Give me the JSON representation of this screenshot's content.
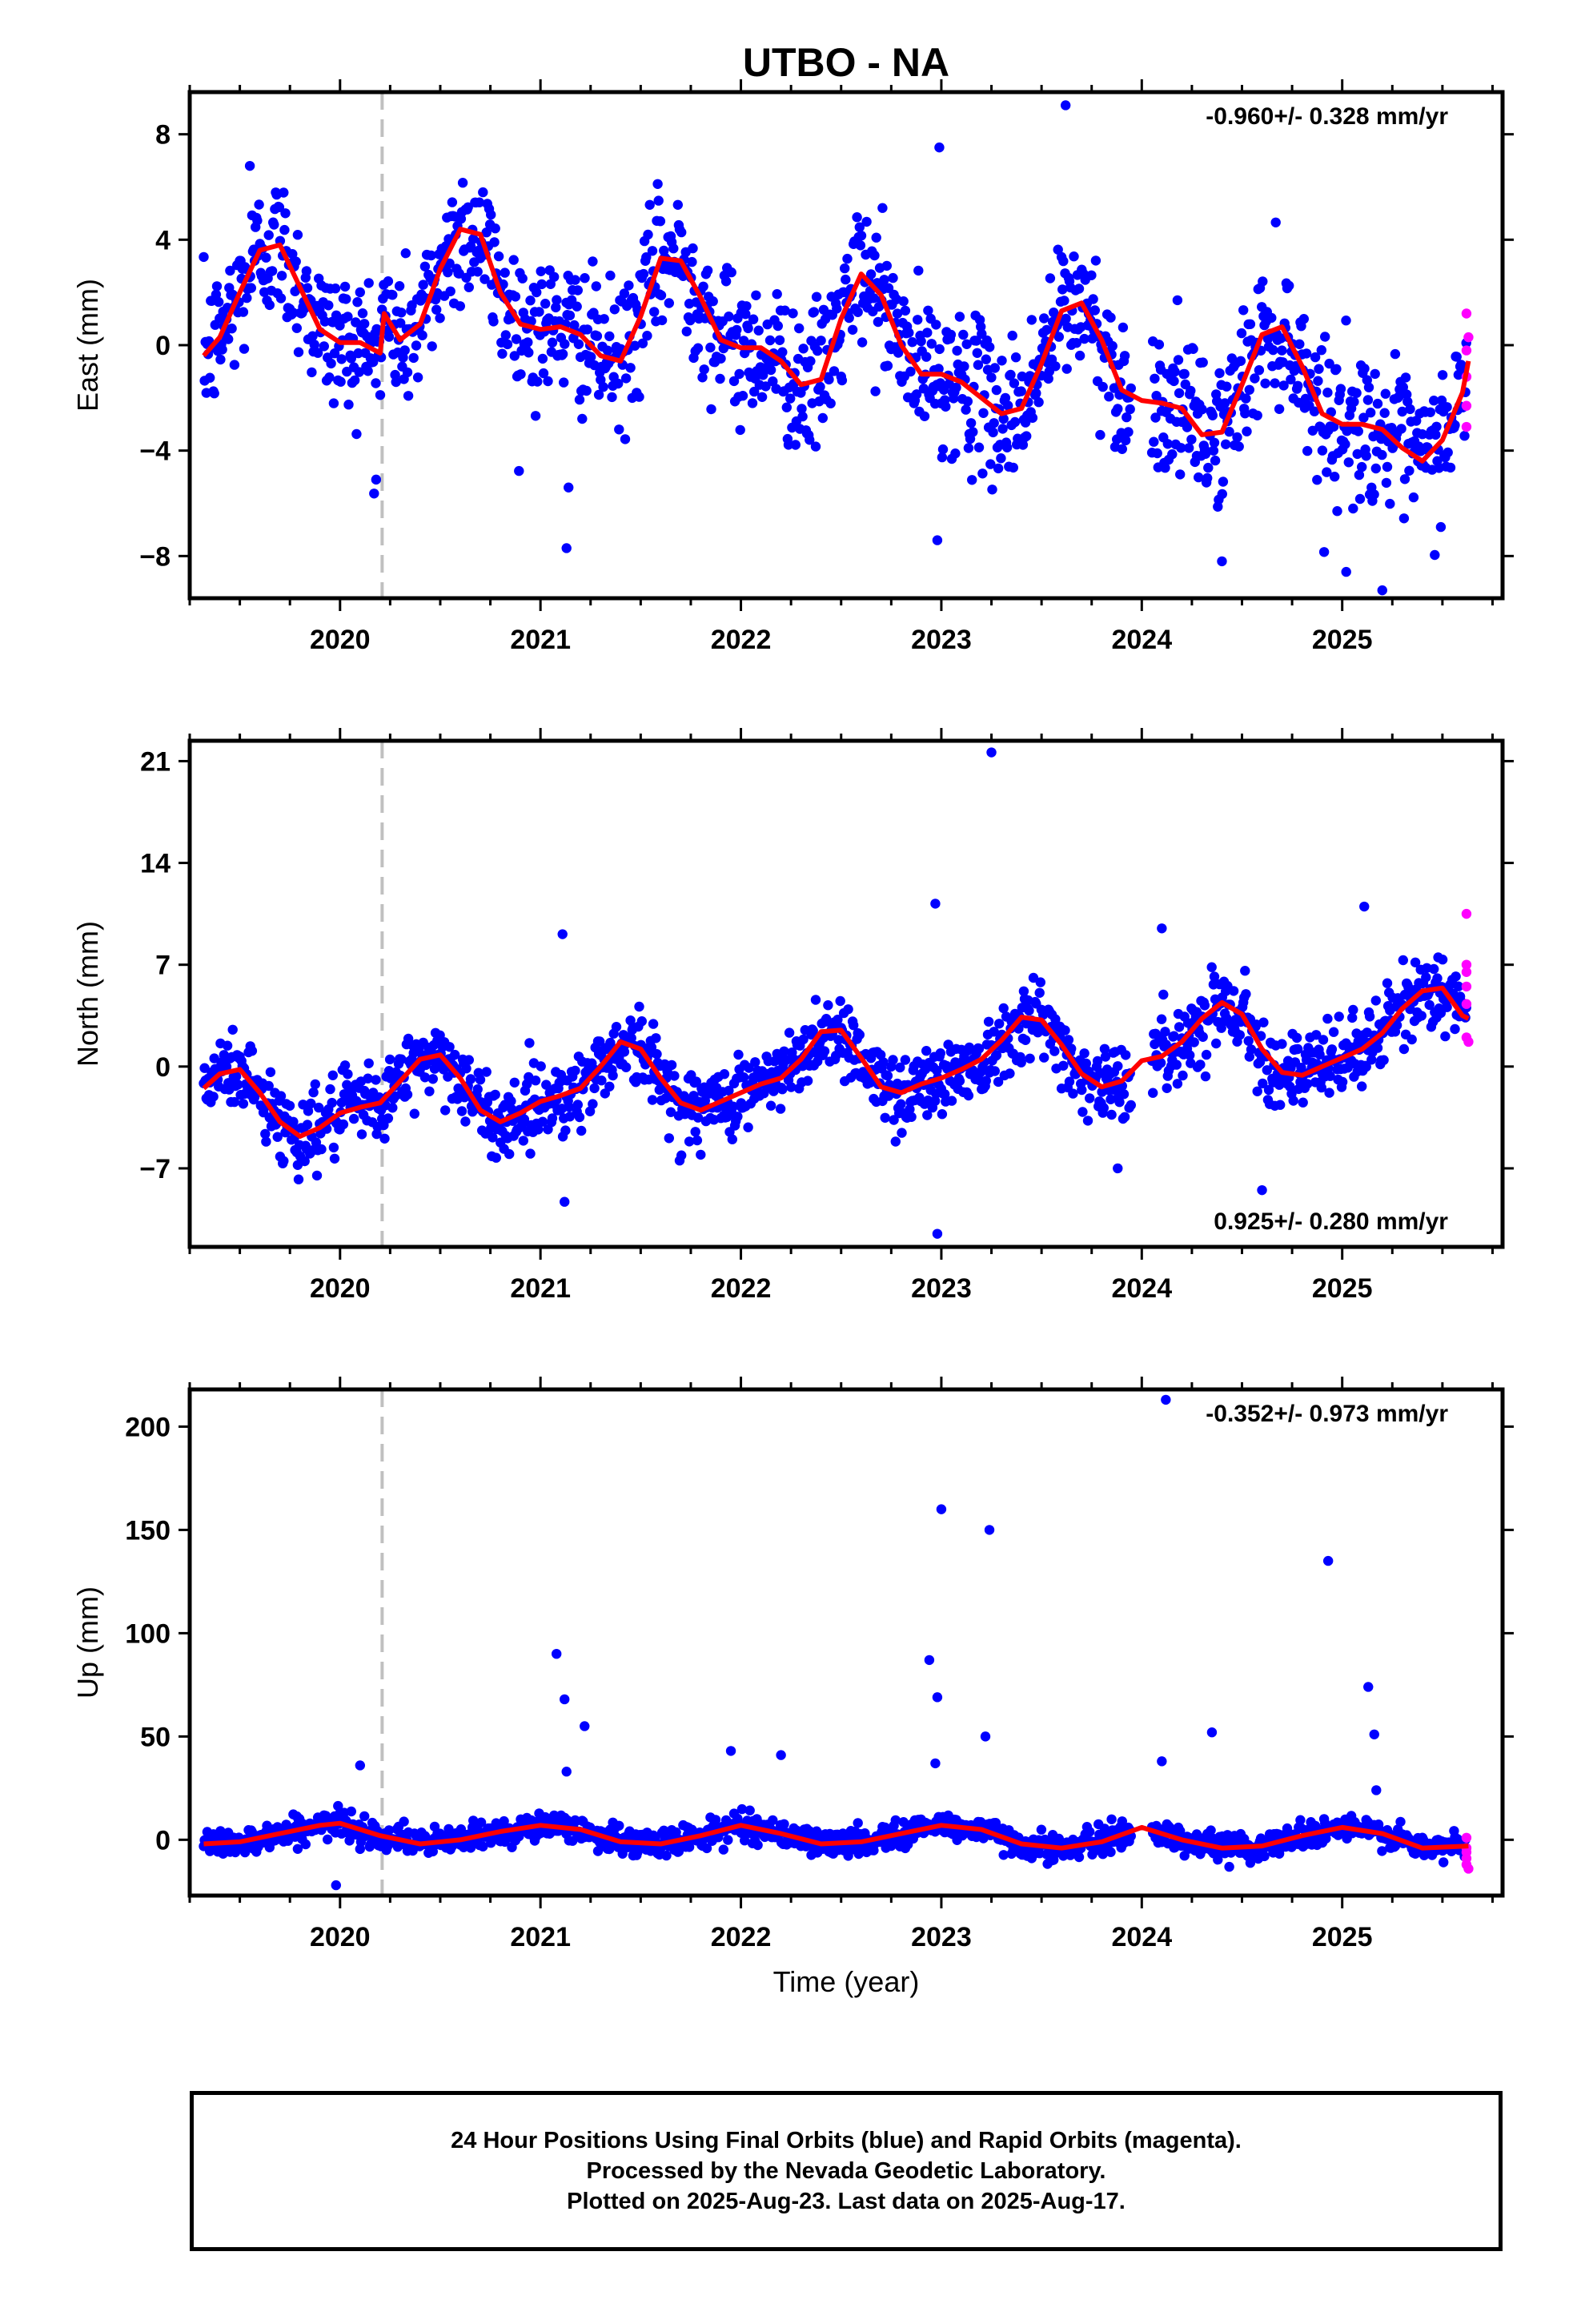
{
  "title": "UTBO - NA",
  "xlabel": "Time (year)",
  "colors": {
    "final": "#0000ff",
    "rapid": "#ff00ff",
    "model": "#ff0000",
    "break_line": "#c0c0c0"
  },
  "footer": {
    "line1": "24 Hour Positions Using Final Orbits (blue) and Rapid Orbits (magenta).",
    "line2": "Processed by the Nevada Geodetic Laboratory.",
    "line3": "Plotted on 2025-Aug-23. Last data on 2025-Aug-17."
  },
  "chart_data": [
    {
      "type": "scatter",
      "component": "east",
      "ylabel": "East (mm)",
      "rate_text": "-0.960+/- 0.328 mm/yr",
      "rate_position": "top-right",
      "xlim": [
        2019.25,
        2025.8
      ],
      "ylim": [
        -9.6,
        9.6
      ],
      "yticks": [
        -8,
        -4,
        0,
        4,
        8
      ],
      "ytick_labels": [
        "−8",
        "−4",
        "0",
        "4",
        "8"
      ],
      "xticks": [
        2020,
        2021,
        2022,
        2023,
        2024,
        2025
      ],
      "equipment_change": 2020.21,
      "data_start": 2019.32,
      "data_end": 2025.63,
      "model": {
        "x": [
          2019.32,
          2019.4,
          2019.5,
          2019.6,
          2019.7,
          2019.8,
          2019.9,
          2020.0,
          2020.1,
          2020.2,
          2020.22,
          2020.3,
          2020.4,
          2020.5,
          2020.6,
          2020.7,
          2020.8,
          2020.9,
          2021.0,
          2021.1,
          2021.2,
          2021.3,
          2021.4,
          2021.5,
          2021.6,
          2021.7,
          2021.8,
          2021.9,
          2022.0,
          2022.1,
          2022.2,
          2022.3,
          2022.4,
          2022.5,
          2022.6,
          2022.7,
          2022.8,
          2022.9,
          2023.0,
          2023.1,
          2023.2,
          2023.3,
          2023.4,
          2023.5,
          2023.6,
          2023.7,
          2023.8,
          2023.9,
          2024.0,
          2024.1,
          2024.2,
          2024.3,
          2024.4,
          2024.5,
          2024.6,
          2024.7,
          2024.8,
          2024.9,
          2025.0,
          2025.1,
          2025.2,
          2025.3,
          2025.4,
          2025.5,
          2025.6,
          2025.63
        ],
        "y": [
          -0.4,
          0.3,
          2.0,
          3.6,
          3.8,
          2.2,
          0.6,
          0.1,
          0.1,
          -0.3,
          1.2,
          0.2,
          0.8,
          2.9,
          4.4,
          4.2,
          2.0,
          0.8,
          0.6,
          0.7,
          0.4,
          -0.4,
          -0.6,
          1.1,
          3.3,
          3.2,
          1.8,
          0.2,
          -0.1,
          -0.1,
          -0.6,
          -1.5,
          -1.3,
          1.0,
          2.7,
          1.9,
          0.0,
          -1.1,
          -1.1,
          -1.4,
          -2.0,
          -2.6,
          -2.4,
          -0.7,
          1.3,
          1.6,
          0.2,
          -1.7,
          -2.1,
          -2.2,
          -2.4,
          -3.4,
          -3.3,
          -1.5,
          0.4,
          0.7,
          -0.8,
          -2.6,
          -3.0,
          -3.0,
          -3.2,
          -3.9,
          -4.4,
          -3.6,
          -1.8,
          -0.6
        ]
      },
      "scatter_model": {
        "amplitude": 1.9,
        "phase": 0.44,
        "scatter_sd": 1.35,
        "rate": -0.96
      },
      "outliers": [
        [
          2023.62,
          9.1
        ],
        [
          2019.55,
          6.8
        ],
        [
          2022.99,
          7.5
        ],
        [
          2021.13,
          -7.7
        ],
        [
          2022.98,
          -7.4
        ],
        [
          2024.4,
          -8.2
        ],
        [
          2025.2,
          -9.3
        ],
        [
          2025.02,
          -8.6
        ],
        [
          2020.18,
          -5.1
        ],
        [
          2021.14,
          -5.4
        ]
      ],
      "rapid": [
        [
          2025.62,
          1.2
        ],
        [
          2025.62,
          -0.2
        ],
        [
          2025.62,
          -1.2
        ],
        [
          2025.62,
          -2.3
        ],
        [
          2025.62,
          -3.1
        ],
        [
          2025.63,
          0.3
        ]
      ]
    },
    {
      "type": "scatter",
      "component": "north",
      "ylabel": "North (mm)",
      "rate_text": "0.925+/- 0.280 mm/yr",
      "rate_position": "bottom-right",
      "xlim": [
        2019.25,
        2025.8
      ],
      "ylim": [
        -12.4,
        22.4
      ],
      "yticks": [
        -7,
        0,
        7,
        14,
        21
      ],
      "ytick_labels": [
        "−7",
        "0",
        "7",
        "14",
        "21"
      ],
      "xticks": [
        2020,
        2021,
        2022,
        2023,
        2024,
        2025
      ],
      "equipment_change": 2020.21,
      "data_start": 2019.32,
      "data_end": 2025.63,
      "model": {
        "x": [
          2019.32,
          2019.4,
          2019.5,
          2019.6,
          2019.7,
          2019.8,
          2019.9,
          2020.0,
          2020.1,
          2020.2,
          2020.3,
          2020.4,
          2020.5,
          2020.6,
          2020.7,
          2020.8,
          2020.9,
          2021.0,
          2021.1,
          2021.2,
          2021.3,
          2021.4,
          2021.5,
          2021.6,
          2021.7,
          2021.8,
          2021.9,
          2022.0,
          2022.1,
          2022.2,
          2022.3,
          2022.4,
          2022.5,
          2022.6,
          2022.7,
          2022.8,
          2022.9,
          2023.0,
          2023.1,
          2023.2,
          2023.3,
          2023.4,
          2023.5,
          2023.6,
          2023.7,
          2023.8,
          2023.9,
          2024.0,
          2024.1,
          2024.2,
          2024.3,
          2024.4,
          2024.5,
          2024.6,
          2024.7,
          2024.8,
          2024.9,
          2025.0,
          2025.1,
          2025.2,
          2025.3,
          2025.4,
          2025.5,
          2025.6,
          2025.63
        ],
        "y": [
          -1.5,
          -0.5,
          -0.2,
          -1.8,
          -3.8,
          -4.8,
          -4.2,
          -3.2,
          -2.8,
          -2.5,
          -1.0,
          0.5,
          0.8,
          -0.8,
          -3.0,
          -3.8,
          -3.2,
          -2.4,
          -2.0,
          -1.5,
          0.0,
          1.7,
          1.2,
          -0.8,
          -2.5,
          -3.0,
          -2.4,
          -1.8,
          -1.2,
          -0.8,
          0.5,
          2.4,
          2.5,
          0.6,
          -1.4,
          -1.8,
          -1.2,
          -0.8,
          -0.2,
          0.5,
          1.8,
          3.4,
          3.2,
          1.5,
          -0.5,
          -1.4,
          -1.0,
          0.4,
          0.7,
          1.7,
          3.3,
          4.4,
          3.6,
          1.2,
          -0.4,
          -0.6,
          0.0,
          0.6,
          1.2,
          2.3,
          4.0,
          5.2,
          5.4,
          3.5,
          3.3
        ]
      },
      "scatter_model": {
        "amplitude": 1.9,
        "phase": 0.42,
        "scatter_sd": 1.3,
        "rate": 0.925
      },
      "outliers": [
        [
          2023.25,
          21.6
        ],
        [
          2022.97,
          11.2
        ],
        [
          2025.11,
          11.0
        ],
        [
          2021.11,
          9.1
        ],
        [
          2024.1,
          9.5
        ],
        [
          2022.98,
          -11.5
        ],
        [
          2021.12,
          -9.3
        ],
        [
          2024.6,
          -8.5
        ],
        [
          2023.88,
          -7.0
        ]
      ],
      "rapid": [
        [
          2025.62,
          10.5
        ],
        [
          2025.62,
          7.0
        ],
        [
          2025.62,
          5.5
        ],
        [
          2025.62,
          4.3
        ],
        [
          2025.62,
          2.0
        ],
        [
          2025.63,
          1.7
        ],
        [
          2025.62,
          6.5
        ]
      ]
    },
    {
      "type": "scatter",
      "component": "up",
      "ylabel": "Up (mm)",
      "rate_text": "-0.352+/- 0.973 mm/yr",
      "rate_position": "top-right",
      "xlim": [
        2019.25,
        2025.8
      ],
      "ylim": [
        -27,
        218
      ],
      "yticks": [
        0,
        50,
        100,
        150,
        200
      ],
      "ytick_labels": [
        "0",
        "50",
        "100",
        "150",
        "200"
      ],
      "xticks": [
        2020,
        2021,
        2022,
        2023,
        2024,
        2025
      ],
      "equipment_change": 2020.21,
      "data_start": 2019.32,
      "data_end": 2025.63,
      "model": {
        "x": [
          2019.32,
          2019.5,
          2019.7,
          2019.9,
          2020.0,
          2020.2,
          2020.4,
          2020.6,
          2020.8,
          2021.0,
          2021.2,
          2021.4,
          2021.6,
          2021.8,
          2022.0,
          2022.2,
          2022.4,
          2022.6,
          2022.8,
          2023.0,
          2023.2,
          2023.4,
          2023.6,
          2023.8,
          2024.0,
          2024.2,
          2024.4,
          2024.6,
          2024.8,
          2025.0,
          2025.2,
          2025.4,
          2025.63
        ],
        "y": [
          -2,
          -1,
          3,
          7,
          8,
          2,
          -2,
          0,
          4,
          7,
          5,
          -1,
          -2,
          2,
          7,
          3,
          -2,
          -1,
          3,
          7,
          5,
          -2,
          -4,
          -1,
          6,
          0,
          -4,
          -3,
          2,
          6,
          3,
          -4,
          -3
        ]
      },
      "scatter_model": {
        "amplitude": 3.5,
        "phase": 0.95,
        "scatter_sd": 3.2,
        "rate": -0.352
      },
      "outliers": [
        [
          2024.12,
          213
        ],
        [
          2023.0,
          160
        ],
        [
          2023.24,
          150
        ],
        [
          2024.93,
          135
        ],
        [
          2021.08,
          90
        ],
        [
          2022.94,
          87
        ],
        [
          2022.98,
          69
        ],
        [
          2021.12,
          68
        ],
        [
          2025.13,
          74
        ],
        [
          2021.22,
          55
        ],
        [
          2024.35,
          52
        ],
        [
          2025.16,
          51
        ],
        [
          2023.22,
          50
        ],
        [
          2021.95,
          43
        ],
        [
          2022.2,
          41
        ],
        [
          2024.1,
          38
        ],
        [
          2020.1,
          36
        ],
        [
          2022.97,
          37
        ],
        [
          2019.98,
          -22
        ],
        [
          2025.17,
          24
        ],
        [
          2021.13,
          33
        ]
      ],
      "rapid": [
        [
          2025.62,
          1
        ],
        [
          2025.62,
          -4
        ],
        [
          2025.62,
          -9
        ],
        [
          2025.62,
          -12
        ],
        [
          2025.63,
          -14
        ],
        [
          2025.62,
          -6
        ]
      ]
    }
  ]
}
